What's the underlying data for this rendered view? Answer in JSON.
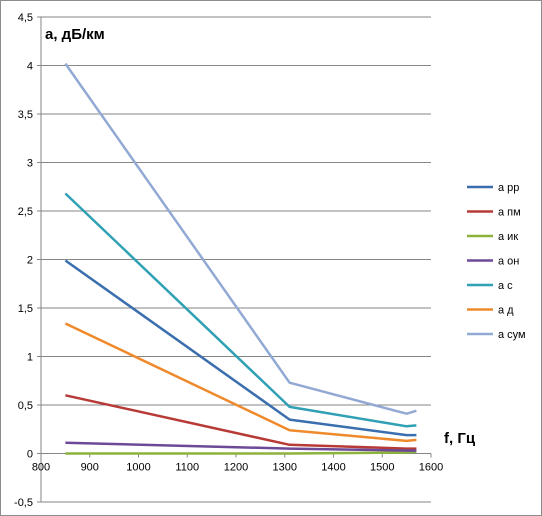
{
  "chart_data": {
    "type": "line",
    "ylabel": "a, дБ/км",
    "xlabel": "f, Гц",
    "xlim": [
      800,
      1600
    ],
    "ylim": [
      -0.5,
      4.5
    ],
    "x_ticks": [
      800,
      900,
      1000,
      1100,
      1200,
      1300,
      1400,
      1500,
      1600
    ],
    "y_ticks": [
      -0.5,
      0,
      0.5,
      1,
      1.5,
      2,
      2.5,
      3,
      3.5,
      4,
      4.5
    ],
    "x_tick_labels": [
      "800",
      "900",
      "1000",
      "1100",
      "1200",
      "1300",
      "1400",
      "1500",
      "1600"
    ],
    "y_tick_labels": [
      "-0,5",
      "0",
      "0,5",
      "1",
      "1,5",
      "2",
      "2,5",
      "3",
      "3,5",
      "4",
      "4,5"
    ],
    "grid": "horizontal major",
    "legend_position": "right",
    "x": [
      850,
      1310,
      1550,
      1570
    ],
    "series": [
      {
        "name": "a рр",
        "color": "#3a6eae",
        "values": [
          1.99,
          0.35,
          0.19,
          0.19
        ]
      },
      {
        "name": "a пм",
        "color": "#b73a37",
        "values": [
          0.6,
          0.09,
          0.05,
          0.05
        ]
      },
      {
        "name": "a ик",
        "color": "#8db33d",
        "values": [
          0.0,
          0.0,
          0.01,
          0.02
        ]
      },
      {
        "name": "a он",
        "color": "#6c4a97",
        "values": [
          0.11,
          0.05,
          0.03,
          0.03
        ]
      },
      {
        "name": "a с",
        "color": "#30a0b5",
        "values": [
          2.68,
          0.48,
          0.28,
          0.29
        ]
      },
      {
        "name": "a д",
        "color": "#ef8a2c",
        "values": [
          1.34,
          0.24,
          0.13,
          0.14
        ]
      },
      {
        "name": "a сум",
        "color": "#92a9d4",
        "values": [
          4.02,
          0.73,
          0.41,
          0.44
        ]
      }
    ]
  }
}
